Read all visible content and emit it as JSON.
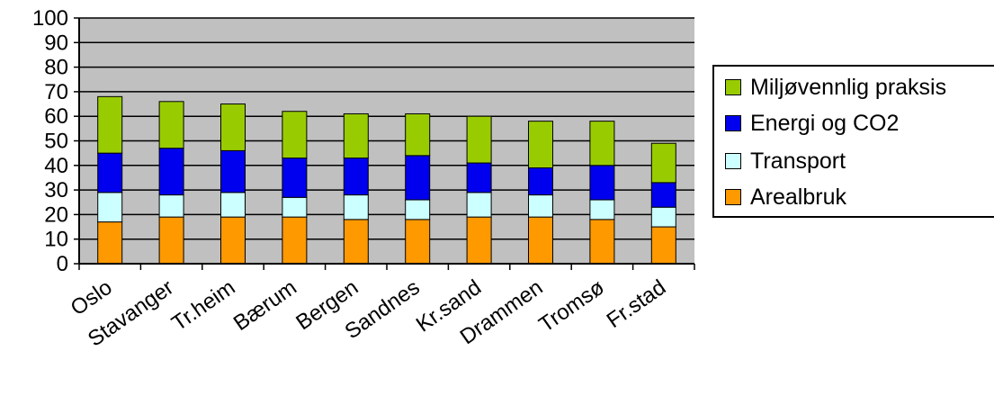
{
  "chart_data": {
    "type": "bar",
    "stacked": true,
    "categories": [
      "Oslo",
      "Stavanger",
      "Tr.heim",
      "Bærum",
      "Bergen",
      "Sandnes",
      "Kr.sand",
      "Drammen",
      "Tromsø",
      "Fr.stad"
    ],
    "series": [
      {
        "name": "Arealbruk",
        "color": "#ff9900",
        "values": [
          17,
          19,
          19,
          19,
          18,
          18,
          19,
          19,
          18,
          15
        ]
      },
      {
        "name": "Transport",
        "color": "#ccffff",
        "values": [
          12,
          9,
          10,
          8,
          10,
          8,
          10,
          9,
          8,
          8
        ]
      },
      {
        "name": "Energi og CO2",
        "color": "#0000ee",
        "values": [
          16,
          19,
          17,
          16,
          15,
          18,
          12,
          11,
          14,
          10
        ]
      },
      {
        "name": "Miljøvennlig praksis",
        "color": "#99cc00",
        "values": [
          23,
          19,
          19,
          19,
          18,
          17,
          19,
          19,
          18,
          16
        ]
      }
    ],
    "ylim": [
      0,
      100
    ],
    "yticks": [
      0,
      10,
      20,
      30,
      40,
      50,
      60,
      70,
      80,
      90,
      100
    ],
    "grid": true,
    "plot_background": "#c0c0c0",
    "legend_position": "right",
    "legend_order": [
      "Miljøvennlig praksis",
      "Energi og CO2",
      "Transport",
      "Arealbruk"
    ],
    "legend_labels": [
      "Miljøvennlig praksis",
      "Energi og CO2",
      "Transport",
      "Arealbruk"
    ],
    "title": "",
    "xlabel": "",
    "ylabel": ""
  }
}
